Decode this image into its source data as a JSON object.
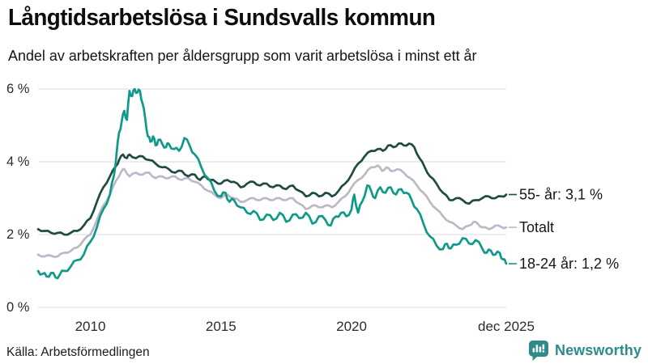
{
  "header": {
    "title": "Långtidsarbetslösa i Sundsvalls kommun",
    "subtitle": "Andel av arbetskraften per åldersgrupp som varit arbetslösa i minst ett år"
  },
  "footer": {
    "source": "Källa: Arbetsförmedlingen",
    "brand_name": "Newsworthy",
    "brand_color": "#2f8b8a",
    "brand_icon": "speech-bubble-bar-chart-icon"
  },
  "colors": {
    "grid": "#e2e1e8",
    "tick_text": "#2b2b2b",
    "annotation_text": "#161616",
    "series_55plus": "#1f4b40",
    "series_totalt": "#bdb8c7",
    "series_1824": "#0f9a88"
  },
  "chart_data": {
    "type": "line",
    "title": "Långtidsarbetslösa i Sundsvalls kommun",
    "subtitle": "Andel av arbetskraften per åldersgrupp som varit arbetslösa i minst ett år",
    "xlabel": "",
    "ylabel": "",
    "x_range": [
      2008.0,
      2025.92
    ],
    "y_range": [
      0,
      6.3
    ],
    "grid": "horizontal-only",
    "legend_position": "right-end-labels",
    "y_ticks": [
      {
        "label": "0 %",
        "value": 0
      },
      {
        "label": "2 %",
        "value": 2
      },
      {
        "label": "4 %",
        "value": 4
      },
      {
        "label": "6 %",
        "value": 6
      }
    ],
    "x_ticks": [
      {
        "label": "2010",
        "year": 2010
      },
      {
        "label": "2015",
        "year": 2015
      },
      {
        "label": "2020",
        "year": 2020
      },
      {
        "label": "dec 2025",
        "year": 2025.92
      }
    ],
    "series": [
      {
        "id": "totalt",
        "name": "Totalt",
        "end_label": "Totalt",
        "end_value": 2.2,
        "color": "#bdb8c7",
        "jag": 0.025,
        "points": [
          [
            2008.0,
            1.45
          ],
          [
            2008.25,
            1.4
          ],
          [
            2008.5,
            1.42
          ],
          [
            2008.75,
            1.4
          ],
          [
            2009.0,
            1.5
          ],
          [
            2009.25,
            1.55
          ],
          [
            2009.5,
            1.65
          ],
          [
            2009.75,
            1.85
          ],
          [
            2010.0,
            2.0
          ],
          [
            2010.25,
            2.4
          ],
          [
            2010.5,
            2.8
          ],
          [
            2010.75,
            3.1
          ],
          [
            2011.0,
            3.5
          ],
          [
            2011.2,
            3.75
          ],
          [
            2011.3,
            3.8
          ],
          [
            2011.5,
            3.6
          ],
          [
            2011.75,
            3.7
          ],
          [
            2012.0,
            3.65
          ],
          [
            2012.25,
            3.7
          ],
          [
            2012.5,
            3.55
          ],
          [
            2012.75,
            3.6
          ],
          [
            2013.0,
            3.55
          ],
          [
            2013.25,
            3.6
          ],
          [
            2013.5,
            3.5
          ],
          [
            2013.75,
            3.55
          ],
          [
            2014.0,
            3.45
          ],
          [
            2014.25,
            3.35
          ],
          [
            2014.5,
            3.2
          ],
          [
            2014.75,
            3.1
          ],
          [
            2015.0,
            3.0
          ],
          [
            2015.25,
            3.1
          ],
          [
            2015.5,
            3.0
          ],
          [
            2015.75,
            2.9
          ],
          [
            2016.0,
            2.95
          ],
          [
            2016.25,
            3.0
          ],
          [
            2016.5,
            2.95
          ],
          [
            2016.75,
            3.0
          ],
          [
            2017.0,
            2.95
          ],
          [
            2017.25,
            3.0
          ],
          [
            2017.5,
            2.95
          ],
          [
            2017.75,
            3.0
          ],
          [
            2018.0,
            2.85
          ],
          [
            2018.25,
            2.7
          ],
          [
            2018.5,
            2.8
          ],
          [
            2018.75,
            2.75
          ],
          [
            2019.0,
            2.8
          ],
          [
            2019.25,
            2.75
          ],
          [
            2019.5,
            2.9
          ],
          [
            2019.75,
            3.05
          ],
          [
            2020.0,
            3.3
          ],
          [
            2020.25,
            3.5
          ],
          [
            2020.5,
            3.65
          ],
          [
            2020.75,
            3.85
          ],
          [
            2021.0,
            3.9
          ],
          [
            2021.17,
            3.75
          ],
          [
            2021.33,
            3.85
          ],
          [
            2021.5,
            3.75
          ],
          [
            2021.75,
            3.8
          ],
          [
            2022.0,
            3.7
          ],
          [
            2022.25,
            3.55
          ],
          [
            2022.5,
            3.35
          ],
          [
            2022.75,
            3.15
          ],
          [
            2023.0,
            2.9
          ],
          [
            2023.25,
            2.7
          ],
          [
            2023.5,
            2.5
          ],
          [
            2023.75,
            2.35
          ],
          [
            2024.0,
            2.25
          ],
          [
            2024.25,
            2.15
          ],
          [
            2024.5,
            2.25
          ],
          [
            2024.67,
            2.35
          ],
          [
            2024.83,
            2.3
          ],
          [
            2025.0,
            2.2
          ],
          [
            2025.25,
            2.15
          ],
          [
            2025.5,
            2.25
          ],
          [
            2025.75,
            2.2
          ],
          [
            2025.92,
            2.2
          ]
        ]
      },
      {
        "id": "55plus",
        "name": "55- år",
        "end_label": "55- år: 3,1 %",
        "end_value": 3.1,
        "color": "#1f4b40",
        "jag": 0.03,
        "points": [
          [
            2008.0,
            2.15
          ],
          [
            2008.25,
            2.1
          ],
          [
            2008.5,
            2.05
          ],
          [
            2008.75,
            2.05
          ],
          [
            2009.0,
            2.0
          ],
          [
            2009.25,
            2.05
          ],
          [
            2009.5,
            2.1
          ],
          [
            2009.75,
            2.25
          ],
          [
            2010.0,
            2.45
          ],
          [
            2010.25,
            2.9
          ],
          [
            2010.5,
            3.3
          ],
          [
            2010.75,
            3.6
          ],
          [
            2011.0,
            3.9
          ],
          [
            2011.1,
            4.05
          ],
          [
            2011.25,
            4.2
          ],
          [
            2011.4,
            4.1
          ],
          [
            2011.5,
            4.2
          ],
          [
            2011.75,
            4.1
          ],
          [
            2012.0,
            4.15
          ],
          [
            2012.25,
            4.05
          ],
          [
            2012.5,
            3.95
          ],
          [
            2012.75,
            3.85
          ],
          [
            2013.0,
            3.8
          ],
          [
            2013.25,
            3.7
          ],
          [
            2013.5,
            3.75
          ],
          [
            2013.75,
            3.6
          ],
          [
            2014.0,
            3.65
          ],
          [
            2014.2,
            3.5
          ],
          [
            2014.4,
            3.6
          ],
          [
            2014.6,
            3.5
          ],
          [
            2014.8,
            3.45
          ],
          [
            2015.0,
            3.4
          ],
          [
            2015.25,
            3.5
          ],
          [
            2015.5,
            3.45
          ],
          [
            2015.75,
            3.3
          ],
          [
            2016.0,
            3.4
          ],
          [
            2016.25,
            3.45
          ],
          [
            2016.5,
            3.35
          ],
          [
            2016.75,
            3.4
          ],
          [
            2017.0,
            3.3
          ],
          [
            2017.25,
            3.35
          ],
          [
            2017.5,
            3.25
          ],
          [
            2017.75,
            3.35
          ],
          [
            2018.0,
            3.2
          ],
          [
            2018.25,
            3.05
          ],
          [
            2018.5,
            3.15
          ],
          [
            2018.75,
            3.05
          ],
          [
            2019.0,
            3.15
          ],
          [
            2019.25,
            3.05
          ],
          [
            2019.5,
            3.2
          ],
          [
            2019.75,
            3.4
          ],
          [
            2020.0,
            3.65
          ],
          [
            2020.25,
            3.95
          ],
          [
            2020.5,
            4.15
          ],
          [
            2020.75,
            4.3
          ],
          [
            2021.0,
            4.35
          ],
          [
            2021.2,
            4.3
          ],
          [
            2021.4,
            4.45
          ],
          [
            2021.6,
            4.4
          ],
          [
            2021.8,
            4.5
          ],
          [
            2022.0,
            4.45
          ],
          [
            2022.2,
            4.5
          ],
          [
            2022.4,
            4.4
          ],
          [
            2022.6,
            4.1
          ],
          [
            2022.8,
            3.85
          ],
          [
            2023.0,
            3.6
          ],
          [
            2023.25,
            3.4
          ],
          [
            2023.5,
            3.15
          ],
          [
            2023.75,
            2.95
          ],
          [
            2024.0,
            3.0
          ],
          [
            2024.25,
            2.95
          ],
          [
            2024.5,
            2.85
          ],
          [
            2024.75,
            2.95
          ],
          [
            2025.0,
            3.0
          ],
          [
            2025.25,
            3.05
          ],
          [
            2025.5,
            3.0
          ],
          [
            2025.75,
            3.05
          ],
          [
            2025.92,
            3.1
          ]
        ]
      },
      {
        "id": "18-24",
        "name": "18-24 år",
        "end_label": "18-24 år: 1,2 %",
        "end_value": 1.2,
        "color": "#0f9a88",
        "jag": 0.06,
        "points": [
          [
            2008.0,
            1.0
          ],
          [
            2008.17,
            0.92
          ],
          [
            2008.33,
            0.85
          ],
          [
            2008.5,
            0.95
          ],
          [
            2008.67,
            0.82
          ],
          [
            2008.83,
            0.9
          ],
          [
            2009.0,
            1.0
          ],
          [
            2009.25,
            1.12
          ],
          [
            2009.5,
            1.3
          ],
          [
            2009.75,
            1.45
          ],
          [
            2010.0,
            1.8
          ],
          [
            2010.25,
            2.2
          ],
          [
            2010.5,
            2.7
          ],
          [
            2010.75,
            3.1
          ],
          [
            2010.9,
            3.6
          ],
          [
            2011.0,
            4.2
          ],
          [
            2011.1,
            4.8
          ],
          [
            2011.2,
            5.1
          ],
          [
            2011.3,
            5.4
          ],
          [
            2011.4,
            5.15
          ],
          [
            2011.5,
            5.95
          ],
          [
            2011.6,
            5.8
          ],
          [
            2011.7,
            6.0
          ],
          [
            2011.8,
            5.9
          ],
          [
            2011.9,
            5.95
          ],
          [
            2012.0,
            5.6
          ],
          [
            2012.1,
            5.2
          ],
          [
            2012.2,
            4.7
          ],
          [
            2012.3,
            4.55
          ],
          [
            2012.4,
            4.7
          ],
          [
            2012.5,
            4.45
          ],
          [
            2012.6,
            4.6
          ],
          [
            2012.75,
            4.5
          ],
          [
            2012.9,
            4.4
          ],
          [
            2013.0,
            4.5
          ],
          [
            2013.2,
            4.35
          ],
          [
            2013.4,
            4.3
          ],
          [
            2013.6,
            4.65
          ],
          [
            2013.8,
            4.45
          ],
          [
            2014.0,
            4.2
          ],
          [
            2014.25,
            3.85
          ],
          [
            2014.5,
            3.55
          ],
          [
            2014.75,
            3.2
          ],
          [
            2015.0,
            3.05
          ],
          [
            2015.17,
            3.15
          ],
          [
            2015.33,
            2.9
          ],
          [
            2015.5,
            2.95
          ],
          [
            2015.75,
            2.75
          ],
          [
            2016.0,
            2.6
          ],
          [
            2016.25,
            2.65
          ],
          [
            2016.5,
            2.4
          ],
          [
            2016.75,
            2.55
          ],
          [
            2017.0,
            2.4
          ],
          [
            2017.25,
            2.6
          ],
          [
            2017.5,
            2.35
          ],
          [
            2017.75,
            2.55
          ],
          [
            2018.0,
            2.45
          ],
          [
            2018.25,
            2.6
          ],
          [
            2018.5,
            2.3
          ],
          [
            2018.75,
            2.5
          ],
          [
            2019.0,
            2.4
          ],
          [
            2019.2,
            2.25
          ],
          [
            2019.4,
            2.5
          ],
          [
            2019.6,
            2.6
          ],
          [
            2019.8,
            2.5
          ],
          [
            2020.0,
            2.7
          ],
          [
            2020.1,
            3.1
          ],
          [
            2020.25,
            2.6
          ],
          [
            2020.4,
            2.9
          ],
          [
            2020.6,
            3.35
          ],
          [
            2020.75,
            3.2
          ],
          [
            2020.9,
            3.0
          ],
          [
            2021.1,
            3.3
          ],
          [
            2021.3,
            3.15
          ],
          [
            2021.5,
            3.3
          ],
          [
            2021.7,
            3.1
          ],
          [
            2021.9,
            3.25
          ],
          [
            2022.1,
            3.15
          ],
          [
            2022.3,
            2.95
          ],
          [
            2022.5,
            2.7
          ],
          [
            2022.75,
            2.3
          ],
          [
            2023.0,
            1.95
          ],
          [
            2023.25,
            1.7
          ],
          [
            2023.5,
            1.6
          ],
          [
            2023.65,
            1.75
          ],
          [
            2023.8,
            1.62
          ],
          [
            2024.0,
            1.72
          ],
          [
            2024.25,
            1.9
          ],
          [
            2024.5,
            1.75
          ],
          [
            2024.75,
            1.85
          ],
          [
            2025.0,
            1.62
          ],
          [
            2025.17,
            1.5
          ],
          [
            2025.33,
            1.56
          ],
          [
            2025.5,
            1.45
          ],
          [
            2025.67,
            1.5
          ],
          [
            2025.79,
            1.32
          ],
          [
            2025.92,
            1.2
          ]
        ]
      }
    ]
  }
}
